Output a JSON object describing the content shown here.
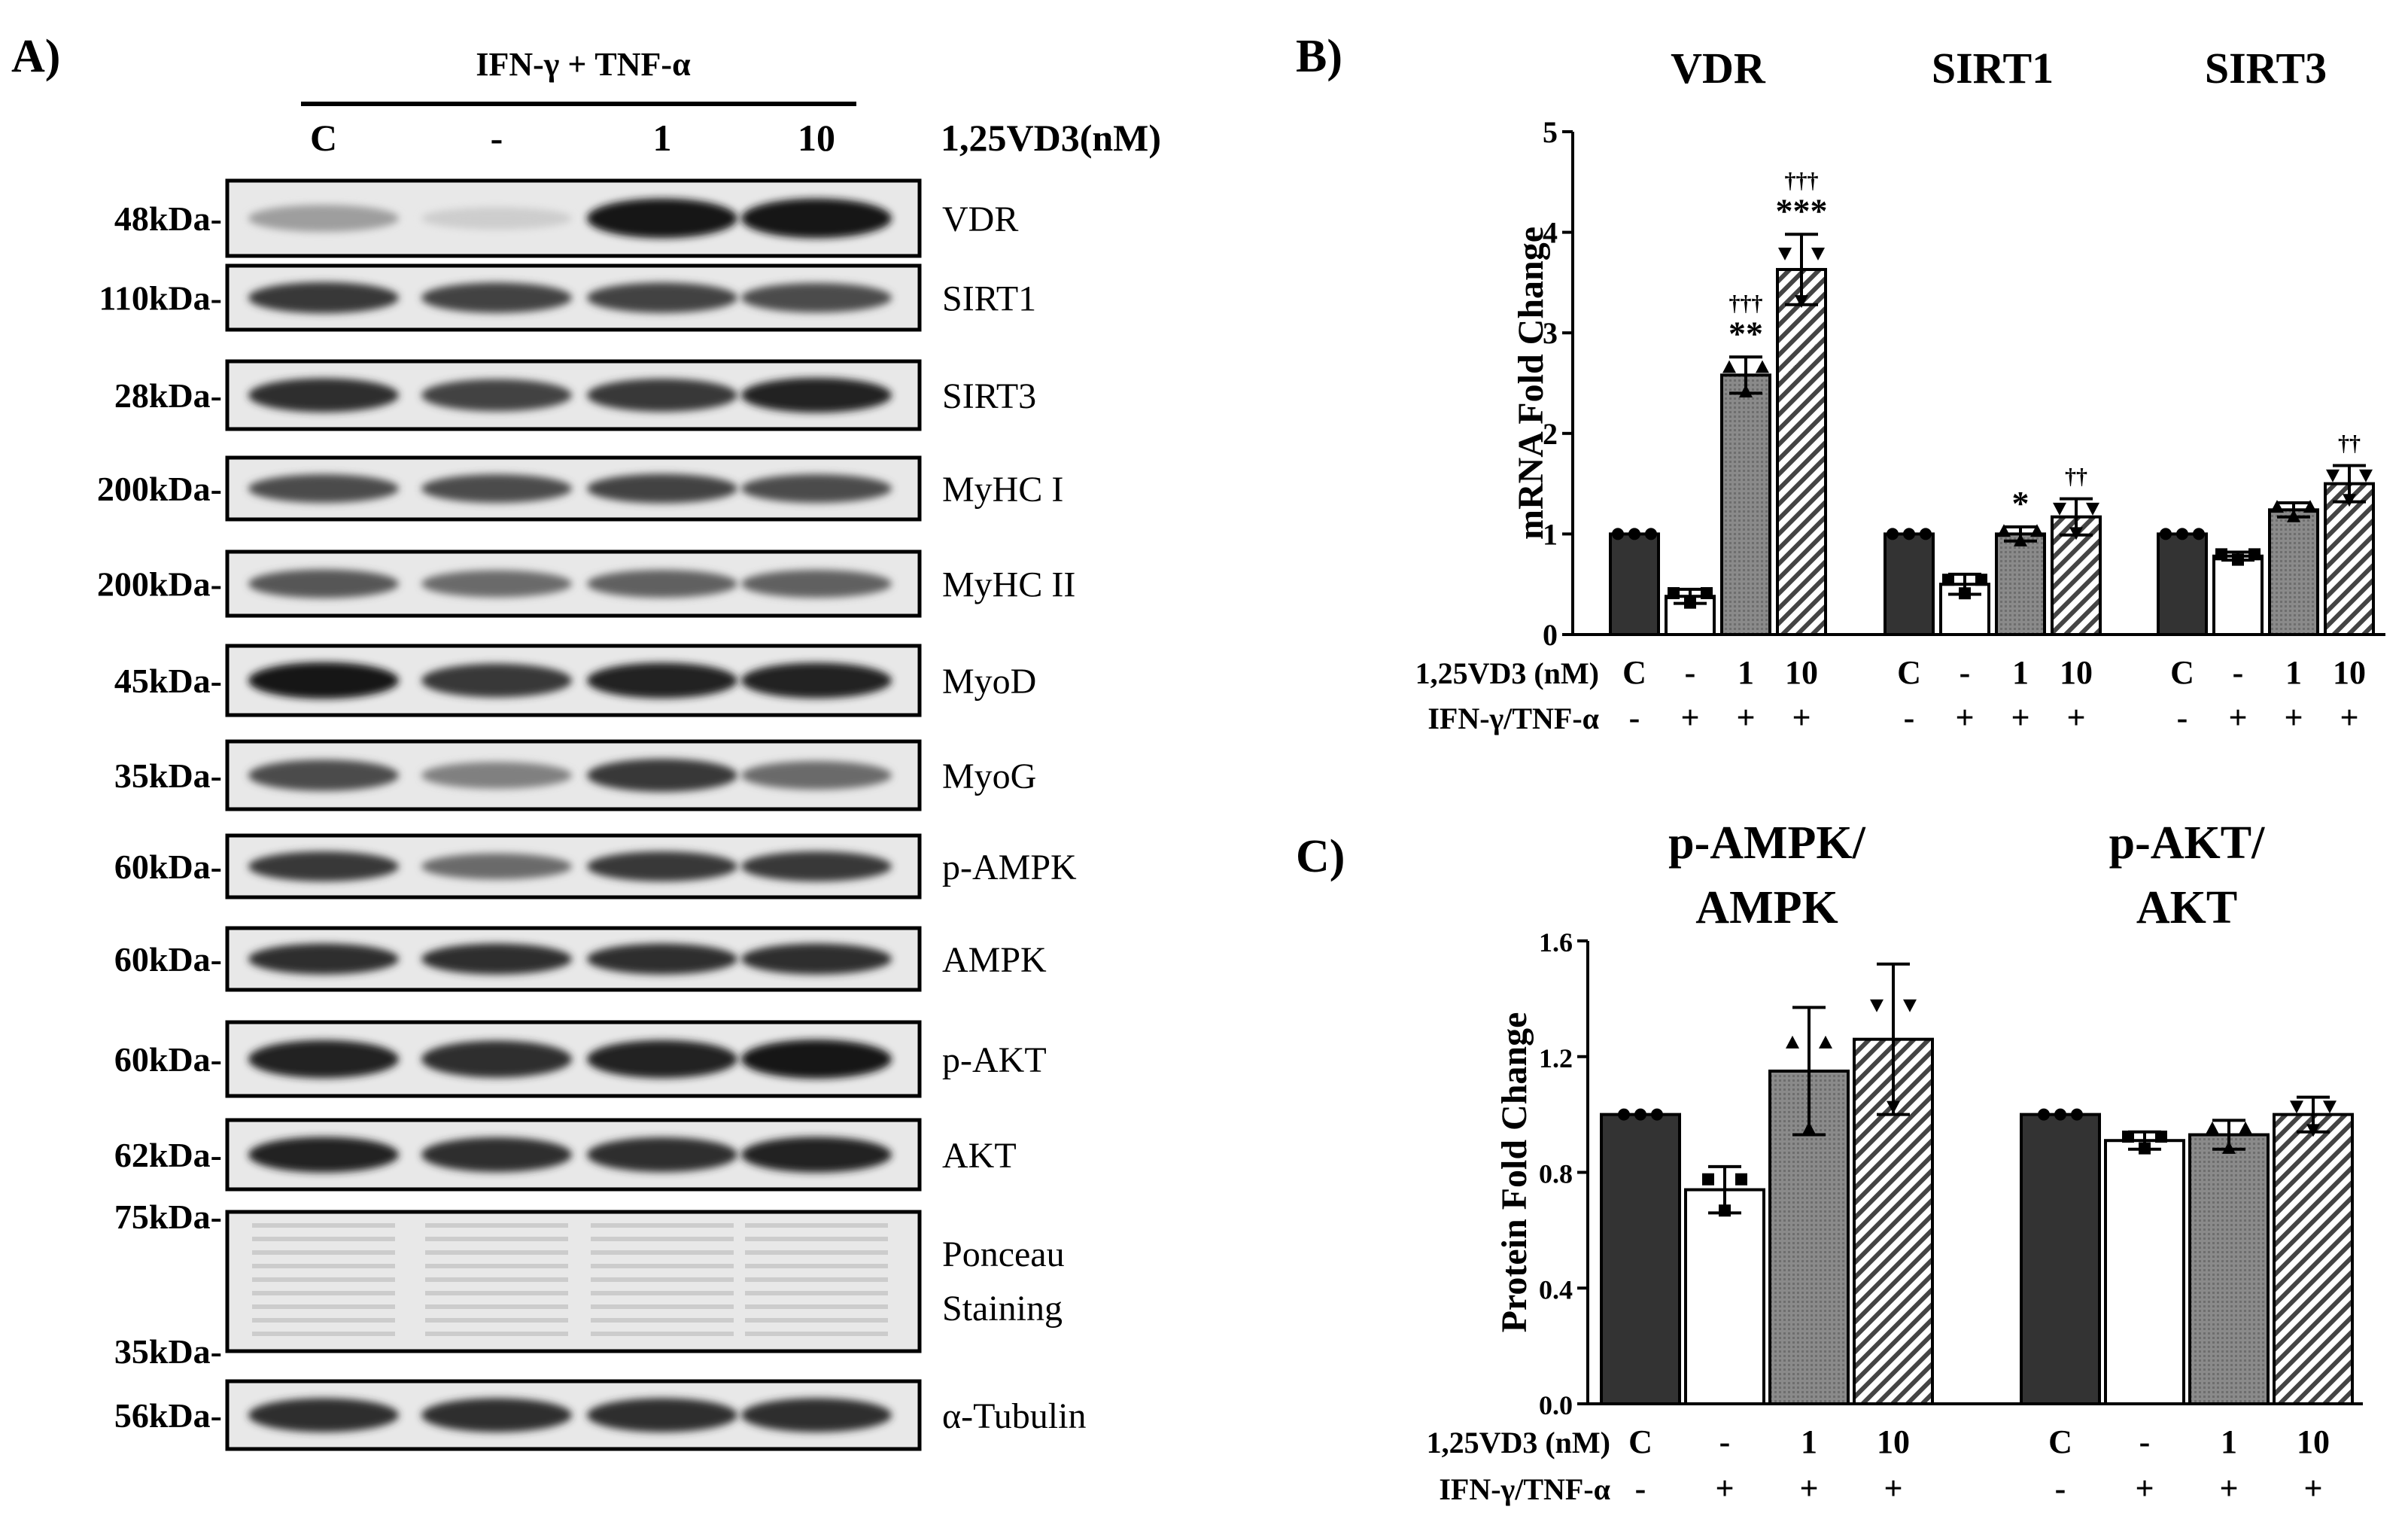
{
  "panel_a": {
    "label": "A)",
    "treatment_header": "IFN-γ + TNF-α",
    "dose_label": "1,25VD3(nM)",
    "lanes": [
      "C",
      "-",
      "1",
      "10"
    ],
    "blots": [
      {
        "name": "VDR",
        "markers": [
          "48kDa-"
        ],
        "intensity": [
          0.35,
          0.12,
          1.0,
          1.0
        ]
      },
      {
        "name": "SIRT1",
        "markers": [
          "110kDa-"
        ],
        "intensity": [
          0.85,
          0.8,
          0.8,
          0.75
        ]
      },
      {
        "name": "SIRT3",
        "markers": [
          "28kDa-"
        ],
        "intensity": [
          0.9,
          0.8,
          0.85,
          0.95
        ]
      },
      {
        "name": "MyHC  I",
        "markers": [
          "200kDa-"
        ],
        "intensity": [
          0.75,
          0.75,
          0.8,
          0.75
        ]
      },
      {
        "name": "MyHC  II",
        "markers": [
          "200kDa-"
        ],
        "intensity": [
          0.7,
          0.6,
          0.65,
          0.65
        ]
      },
      {
        "name": "MyoD",
        "markers": [
          "45kDa-"
        ],
        "intensity": [
          1.0,
          0.85,
          0.95,
          0.95
        ]
      },
      {
        "name": "MyoG",
        "markers": [
          "35kDa-"
        ],
        "intensity": [
          0.75,
          0.5,
          0.85,
          0.6
        ]
      },
      {
        "name": "p-AMPK",
        "markers": [
          "60kDa-"
        ],
        "intensity": [
          0.85,
          0.6,
          0.85,
          0.85
        ]
      },
      {
        "name": "AMPK",
        "markers": [
          "60kDa-"
        ],
        "intensity": [
          0.9,
          0.9,
          0.9,
          0.9
        ]
      },
      {
        "name": "p-AKT",
        "markers": [
          "60kDa-"
        ],
        "intensity": [
          0.95,
          0.9,
          0.95,
          1.0
        ]
      },
      {
        "name": "AKT",
        "markers": [
          "62kDa-"
        ],
        "intensity": [
          0.95,
          0.9,
          0.9,
          0.95
        ]
      },
      {
        "name": "Ponceau\nStaining",
        "markers": [
          "75kDa-",
          "35kDa-"
        ],
        "intensity": [
          0.3,
          0.3,
          0.3,
          0.3
        ]
      },
      {
        "name": "α-Tubulin",
        "markers": [
          "56kDa-"
        ],
        "intensity": [
          0.9,
          0.9,
          0.9,
          0.9
        ]
      }
    ]
  },
  "chart_data": [
    {
      "type": "bar",
      "panel_label": "B)",
      "ylabel": "mRNA Fold Change",
      "ylim": [
        0,
        5
      ],
      "yticks": [
        "0",
        "1",
        "2",
        "3",
        "4",
        "5"
      ],
      "row_labels": [
        "1,25VD3 (nM)",
        "IFN-γ/TNF-α"
      ],
      "groups": [
        {
          "title": "VDR",
          "values": [
            1.0,
            0.38,
            2.58,
            3.63
          ],
          "errors": [
            0,
            0.07,
            0.18,
            0.35
          ],
          "annotations": [
            "",
            "",
            "**",
            "***"
          ],
          "daggers": [
            "",
            "",
            "†††",
            "†††"
          ]
        },
        {
          "title": "SIRT1",
          "values": [
            1.0,
            0.5,
            1.0,
            1.17
          ],
          "errors": [
            0,
            0.1,
            0.07,
            0.18
          ],
          "annotations": [
            "",
            "",
            "*",
            ""
          ],
          "daggers": [
            "",
            "",
            "",
            "††"
          ]
        },
        {
          "title": "SIRT3",
          "values": [
            1.0,
            0.78,
            1.24,
            1.5
          ],
          "errors": [
            0,
            0.04,
            0.07,
            0.18
          ],
          "annotations": [
            "",
            "",
            "",
            ""
          ],
          "daggers": [
            "",
            "",
            "",
            "††"
          ]
        }
      ],
      "doses": [
        "C",
        "-",
        "1",
        "10"
      ],
      "treatment": [
        "-",
        "+",
        "+",
        "+"
      ]
    },
    {
      "type": "bar",
      "panel_label": "C)",
      "ylabel": "Protein Fold Change",
      "ylim": [
        0,
        1.6
      ],
      "yticks": [
        "0.0",
        "0.4",
        "0.8",
        "1.2",
        "1.6"
      ],
      "row_labels": [
        "1,25VD3 (nM)",
        "IFN-γ/TNF-α"
      ],
      "groups": [
        {
          "title": "p-AMPK/\nAMPK",
          "values": [
            1.0,
            0.74,
            1.15,
            1.26
          ],
          "errors": [
            0,
            0.08,
            0.22,
            0.26
          ]
        },
        {
          "title": "p-AKT/\nAKT",
          "values": [
            1.0,
            0.91,
            0.93,
            1.0
          ],
          "errors": [
            0,
            0.03,
            0.05,
            0.06
          ]
        }
      ],
      "doses": [
        "C",
        "-",
        "1",
        "10"
      ],
      "treatment": [
        "-",
        "+",
        "+",
        "+"
      ]
    }
  ]
}
